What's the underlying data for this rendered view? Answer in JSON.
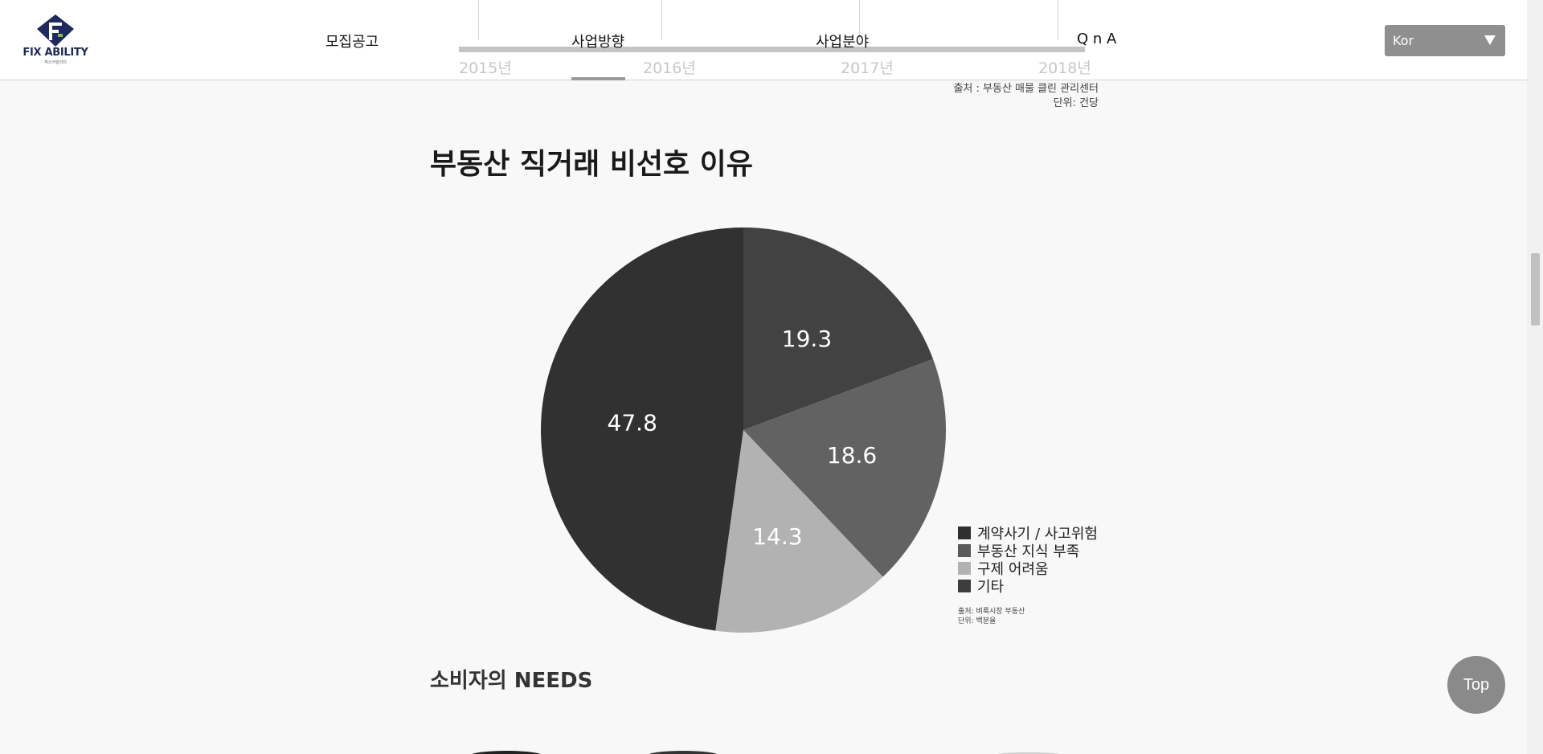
{
  "header": {
    "logo_text": "FIX ABILITY",
    "logo_sub": "픽스어빌리티",
    "nav": [
      "모집공고",
      "사업방향",
      "사업분야",
      "Q n A"
    ],
    "years": [
      "2015년",
      "2016년",
      "2017년",
      "2018년"
    ],
    "language": "Kor"
  },
  "source_top": {
    "line1": "출처 : 부동산 매물 클린 관리센터",
    "line2": "단위: 건당"
  },
  "chart_title": "부동산 직거래 비선호 이유",
  "chart_data": {
    "type": "pie",
    "title": "부동산 직거래 비선호 이유",
    "slices": [
      {
        "label": "기타",
        "value": 19.3,
        "color": "#424242"
      },
      {
        "label": "부동산 지식 부족",
        "value": 18.6,
        "color": "#626262"
      },
      {
        "label": "구제 어려움",
        "value": 14.3,
        "color": "#b2b2b2"
      },
      {
        "label": "계약사기 / 사고위험",
        "value": 47.8,
        "color": "#313131"
      }
    ],
    "legend": [
      {
        "label": "계약사기 / 사고위험",
        "color": "#2f2f2f"
      },
      {
        "label": "부동산 지식 부족",
        "color": "#5a5a5a"
      },
      {
        "label": "구제 어려움",
        "color": "#b2b2b2"
      },
      {
        "label": "기타",
        "color": "#3c3c3c"
      }
    ],
    "legend_position": "bottom-right"
  },
  "source_small": {
    "line1": "출처: 벼룩시장 부동산",
    "line2": "단위: 백분율"
  },
  "needs_title": "소비자의 NEEDS",
  "top_button": "Top"
}
